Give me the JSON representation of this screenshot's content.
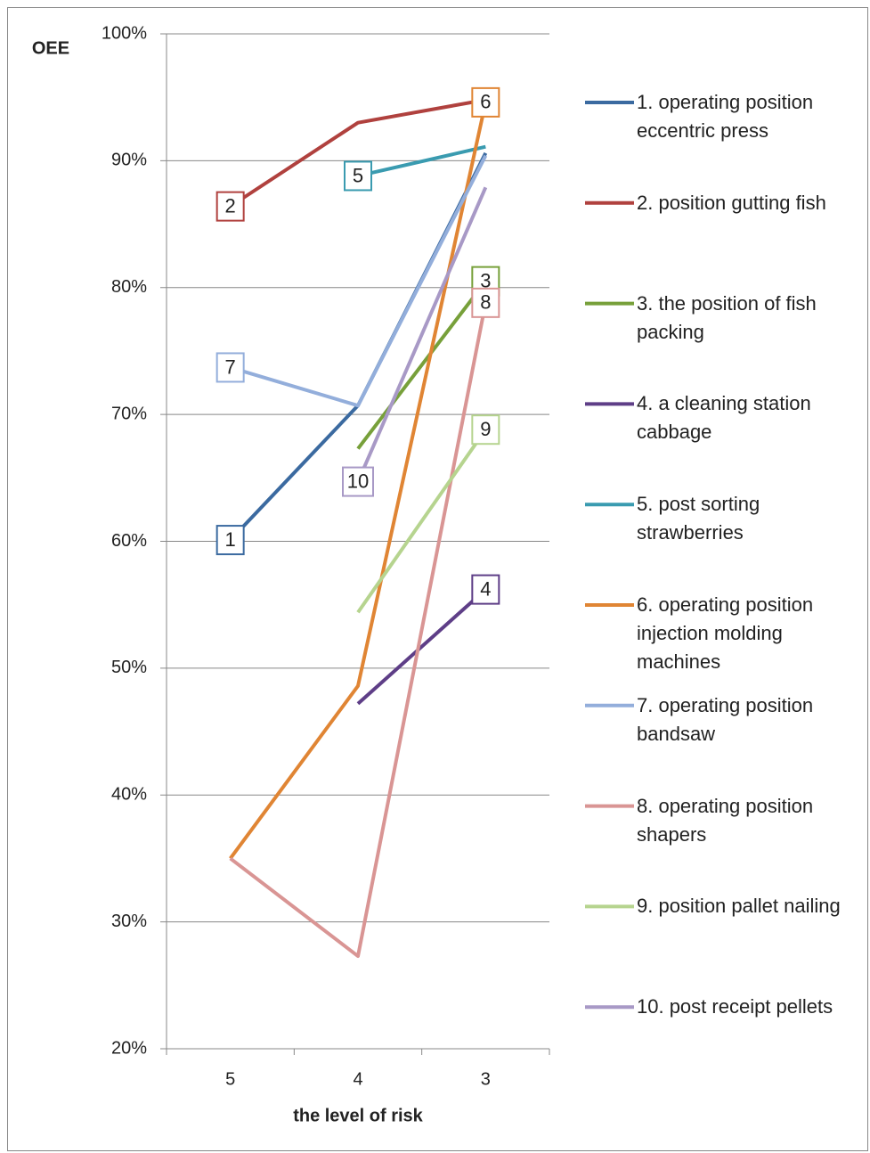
{
  "chart_data": {
    "type": "line",
    "y_label": "OEE",
    "x_label": "the level of risk",
    "categories": [
      "5",
      "4",
      "3"
    ],
    "ylim": [
      20,
      100
    ],
    "yticks": [
      {
        "value": 20,
        "label": "20%"
      },
      {
        "value": 30,
        "label": "30%"
      },
      {
        "value": 40,
        "label": "40%"
      },
      {
        "value": 50,
        "label": "50%"
      },
      {
        "value": 60,
        "label": "60%"
      },
      {
        "value": 70,
        "label": "70%"
      },
      {
        "value": 80,
        "label": "80%"
      },
      {
        "value": 90,
        "label": "90%"
      },
      {
        "value": 100,
        "label": "100%"
      }
    ],
    "grid": true,
    "legend": "right",
    "series": [
      {
        "name": "1. operating position eccentric press",
        "color": "#3b6aa0",
        "values": [
          60.1,
          70.7,
          90.6
        ],
        "tag": "1",
        "tag_category": "5"
      },
      {
        "name": "2. position gutting fish",
        "color": "#b0413e",
        "values": [
          86.4,
          93.0,
          94.8
        ],
        "tag": "2",
        "tag_category": "5"
      },
      {
        "name": "3. the position of fish packing",
        "color": "#77a03a",
        "values": [
          null,
          67.3,
          80.5
        ],
        "tag": "3",
        "tag_category": "3"
      },
      {
        "name": "4. a cleaning station cabbage",
        "color": "#5e3e87",
        "values": [
          null,
          47.2,
          56.2
        ],
        "tag": "4",
        "tag_category": "3"
      },
      {
        "name": "5. post sorting strawberries",
        "color": "#3a9bb0",
        "values": [
          null,
          88.8,
          91.1
        ],
        "tag": "5",
        "tag_category": "4"
      },
      {
        "name": "6. operating position injection molding machines",
        "color": "#e08534",
        "values": [
          35.0,
          48.6,
          94.6
        ],
        "tag": "6",
        "tag_category": "3"
      },
      {
        "name": "7. operating position bandsaw",
        "color": "#93aedb",
        "values": [
          73.7,
          70.7,
          90.4
        ],
        "tag": "7",
        "tag_category": "5"
      },
      {
        "name": "8. operating position shapers",
        "color": "#d99594",
        "values": [
          35.0,
          27.3,
          78.8
        ],
        "tag": "8",
        "tag_category": "3"
      },
      {
        "name": "9. position pallet nailing",
        "color": "#b6d48f",
        "values": [
          null,
          54.4,
          68.8
        ],
        "tag": "9",
        "tag_category": "3"
      },
      {
        "name": "10. post receipt pellets",
        "color": "#a899c6",
        "values": [
          null,
          64.7,
          87.9
        ],
        "tag": "10",
        "tag_category": "4"
      }
    ]
  }
}
